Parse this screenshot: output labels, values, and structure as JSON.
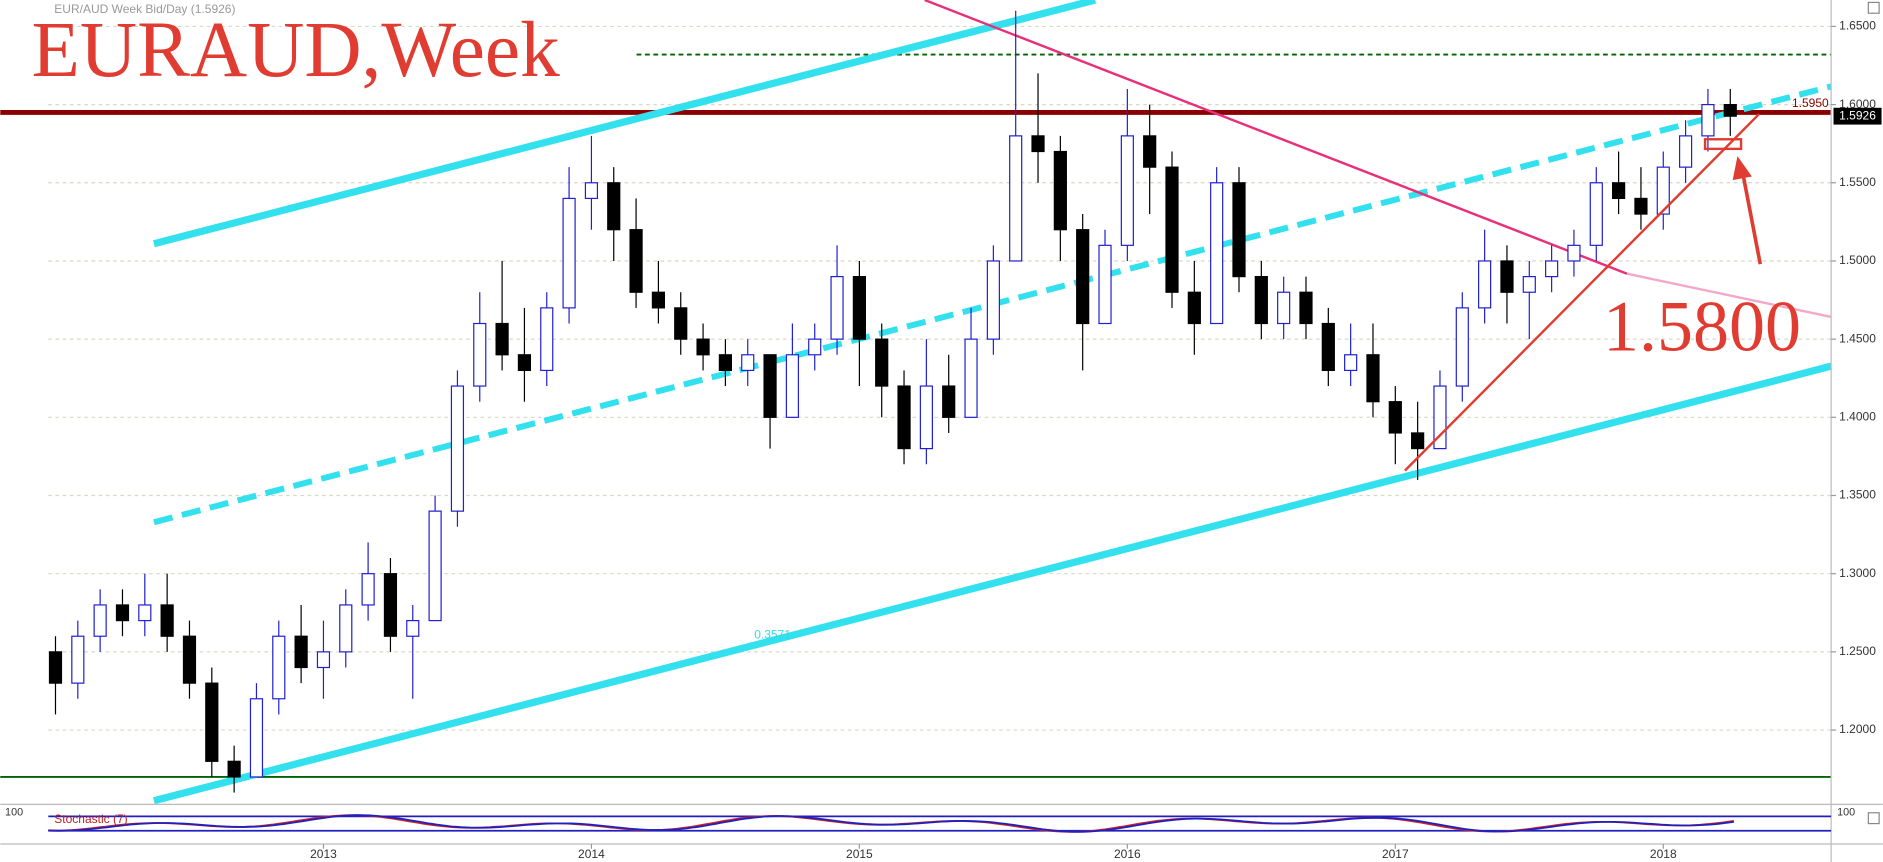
{
  "chart_data": {
    "type": "candlestick",
    "title": "EURAUD,Week",
    "subtitle": "EUR/AUD Week Bid/Day (1.5926)",
    "annotation": "1.5800",
    "fib_label": "0.3571",
    "indicator": "Stochastic (7)",
    "indicator_tick": 100,
    "categories": [
      null,
      null,
      null,
      null,
      null,
      null,
      null,
      null,
      null,
      null,
      null,
      null,
      "2013",
      null,
      null,
      null,
      null,
      null,
      null,
      null,
      null,
      null,
      null,
      null,
      "2014",
      null,
      null,
      null,
      null,
      null,
      null,
      null,
      null,
      null,
      null,
      null,
      "2015",
      null,
      null,
      null,
      null,
      null,
      null,
      null,
      null,
      null,
      null,
      null,
      "2016",
      null,
      null,
      null,
      null,
      null,
      null,
      null,
      null,
      null,
      null,
      null,
      "2017",
      null,
      null,
      null,
      null,
      null,
      null,
      null,
      null,
      null,
      null,
      null,
      "2018",
      null,
      null,
      null
    ],
    "open": [
      1.25,
      1.23,
      1.26,
      1.28,
      1.27,
      1.28,
      1.26,
      1.23,
      1.18,
      1.17,
      1.22,
      1.26,
      1.24,
      1.25,
      1.28,
      1.3,
      1.26,
      1.27,
      1.34,
      1.42,
      1.46,
      1.44,
      1.43,
      1.47,
      1.54,
      1.55,
      1.52,
      1.48,
      1.47,
      1.45,
      1.44,
      1.43,
      1.44,
      1.4,
      1.44,
      1.45,
      1.49,
      1.45,
      1.42,
      1.38,
      1.42,
      1.4,
      1.45,
      1.5,
      1.58,
      1.57,
      1.52,
      1.46,
      1.51,
      1.58,
      1.56,
      1.48,
      1.46,
      1.55,
      1.49,
      1.46,
      1.48,
      1.46,
      1.43,
      1.44,
      1.41,
      1.39,
      1.38,
      1.42,
      1.47,
      1.5,
      1.48,
      1.49,
      1.5,
      1.51,
      1.55,
      1.54,
      1.53,
      1.56,
      1.58,
      1.6
    ],
    "high": [
      1.26,
      1.27,
      1.29,
      1.29,
      1.3,
      1.3,
      1.27,
      1.24,
      1.19,
      1.23,
      1.27,
      1.28,
      1.27,
      1.29,
      1.32,
      1.31,
      1.28,
      1.35,
      1.43,
      1.48,
      1.5,
      1.47,
      1.48,
      1.56,
      1.58,
      1.56,
      1.54,
      1.5,
      1.48,
      1.46,
      1.45,
      1.45,
      1.44,
      1.46,
      1.46,
      1.51,
      1.5,
      1.46,
      1.43,
      1.45,
      1.44,
      1.47,
      1.51,
      1.66,
      1.62,
      1.58,
      1.53,
      1.52,
      1.61,
      1.6,
      1.57,
      1.5,
      1.56,
      1.56,
      1.5,
      1.49,
      1.49,
      1.47,
      1.46,
      1.46,
      1.42,
      1.41,
      1.43,
      1.48,
      1.52,
      1.51,
      1.5,
      1.51,
      1.52,
      1.56,
      1.57,
      1.56,
      1.57,
      1.59,
      1.61,
      1.61
    ],
    "low": [
      1.21,
      1.22,
      1.25,
      1.26,
      1.26,
      1.25,
      1.22,
      1.17,
      1.16,
      1.17,
      1.21,
      1.23,
      1.22,
      1.24,
      1.27,
      1.25,
      1.22,
      1.27,
      1.33,
      1.41,
      1.43,
      1.41,
      1.42,
      1.46,
      1.52,
      1.5,
      1.47,
      1.46,
      1.44,
      1.43,
      1.42,
      1.42,
      1.38,
      1.4,
      1.43,
      1.44,
      1.42,
      1.4,
      1.37,
      1.37,
      1.39,
      1.4,
      1.44,
      1.5,
      1.55,
      1.5,
      1.43,
      1.46,
      1.5,
      1.53,
      1.47,
      1.44,
      1.46,
      1.48,
      1.45,
      1.45,
      1.45,
      1.42,
      1.42,
      1.4,
      1.37,
      1.36,
      1.38,
      1.41,
      1.46,
      1.46,
      1.45,
      1.48,
      1.49,
      1.5,
      1.53,
      1.52,
      1.52,
      1.55,
      1.57,
      1.58
    ],
    "close": [
      1.23,
      1.26,
      1.28,
      1.27,
      1.28,
      1.26,
      1.23,
      1.18,
      1.17,
      1.22,
      1.26,
      1.24,
      1.25,
      1.28,
      1.3,
      1.26,
      1.27,
      1.34,
      1.42,
      1.46,
      1.44,
      1.43,
      1.47,
      1.54,
      1.55,
      1.52,
      1.48,
      1.47,
      1.45,
      1.44,
      1.43,
      1.44,
      1.4,
      1.44,
      1.45,
      1.49,
      1.45,
      1.42,
      1.38,
      1.42,
      1.4,
      1.45,
      1.5,
      1.58,
      1.57,
      1.52,
      1.46,
      1.51,
      1.58,
      1.56,
      1.48,
      1.46,
      1.55,
      1.49,
      1.46,
      1.48,
      1.46,
      1.43,
      1.44,
      1.41,
      1.39,
      1.38,
      1.42,
      1.47,
      1.5,
      1.48,
      1.49,
      1.5,
      1.51,
      1.55,
      1.54,
      1.53,
      1.56,
      1.58,
      1.6,
      1.5926
    ],
    "colors": {
      "up": "#2020d0",
      "down": "#000000"
    },
    "ylim": [
      1.1563,
      1.6669
    ],
    "yticks": [
      {
        "value": 1.2,
        "label": "1.2000"
      },
      {
        "value": 1.25,
        "label": "1.2500"
      },
      {
        "value": 1.3,
        "label": "1.3000"
      },
      {
        "value": 1.35,
        "label": "1.3500"
      },
      {
        "value": 1.4,
        "label": "1.4000"
      },
      {
        "value": 1.45,
        "label": "1.4500"
      },
      {
        "value": 1.5,
        "label": "1.5000"
      },
      {
        "value": 1.55,
        "label": "1.5500"
      },
      {
        "value": 1.6,
        "label": "1.6000"
      },
      {
        "value": 1.65,
        "label": "1.6500"
      }
    ],
    "grid": true,
    "levels": [
      {
        "value": 1.595,
        "label": "1.5950",
        "color": "#8b0000",
        "width": 4
      },
      {
        "value": 1.632,
        "color": "#006400",
        "width": 1.5,
        "dashed": true
      },
      {
        "value": 1.17,
        "color": "#006400",
        "width": 1.5
      }
    ],
    "last_price": 1.5926
  }
}
